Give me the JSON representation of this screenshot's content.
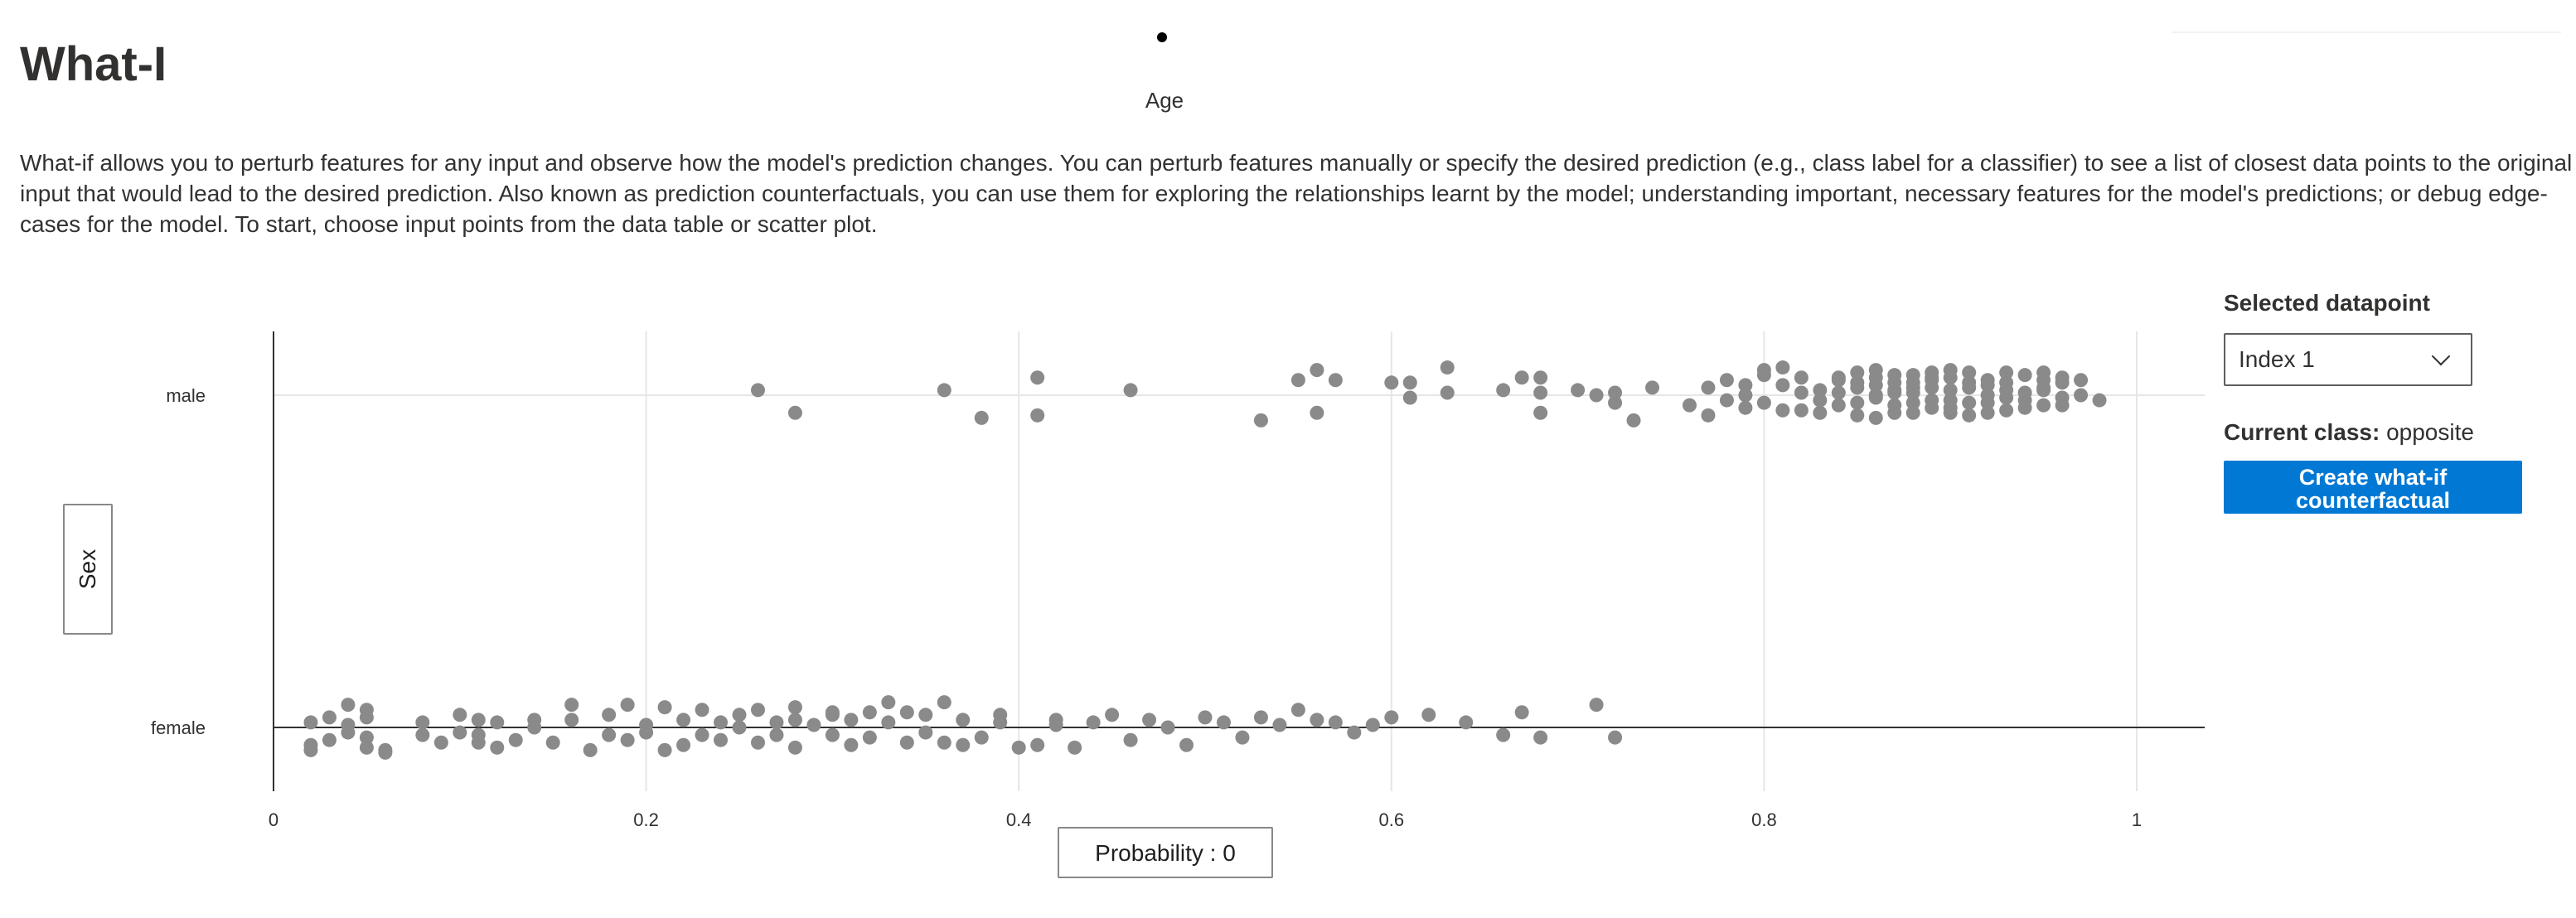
{
  "header": {
    "top_axis_label": "Age",
    "title": "What-I",
    "description": "What-if allows you to perturb features for any input and observe how the model's prediction changes. You can perturb features manually or specify the desired prediction (e.g., class label for a classifier) to see a list of closest data points to the original input that would lead to the desired prediction. Also known as prediction counterfactuals, you can use them for exploring the relationships learnt by the model; understanding important, necessary features for the model's predictions; or debug edge-cases for the model. To start, choose input points from the data table or scatter plot."
  },
  "axis_controls": {
    "y_button_label": "Sex",
    "x_button_label": "Probability : 0"
  },
  "side_panel": {
    "selected_label": "Selected datapoint",
    "selected_value": "Index 1",
    "current_class_label": "Current class:",
    "current_class_value": "opposite",
    "cf_button_label": "Create what-if counterfactual"
  },
  "colors": {
    "point": "#8a8a8a",
    "accent": "#0078d4"
  },
  "chart_data": {
    "type": "scatter",
    "x_ticks": [
      "0",
      "0.2",
      "0.4",
      "0.6",
      "0.8",
      "1"
    ],
    "x_tick_values": [
      0,
      0.2,
      0.4,
      0.6,
      0.8,
      1
    ],
    "xlim": [
      0,
      1.04
    ],
    "categories": [
      "female",
      "male"
    ],
    "grid": true,
    "series": [
      {
        "category": "male",
        "points": [
          [
            0.26,
            0.02
          ],
          [
            0.28,
            -0.07
          ],
          [
            0.36,
            0.02
          ],
          [
            0.38,
            -0.09
          ],
          [
            0.41,
            0.07
          ],
          [
            0.41,
            -0.08
          ],
          [
            0.46,
            0.02
          ],
          [
            0.53,
            -0.1
          ],
          [
            0.55,
            0.06
          ],
          [
            0.56,
            0.1
          ],
          [
            0.57,
            0.06
          ],
          [
            0.56,
            -0.07
          ],
          [
            0.6,
            0.05
          ],
          [
            0.61,
            0.05
          ],
          [
            0.61,
            -0.01
          ],
          [
            0.63,
            0.11
          ],
          [
            0.63,
            0.01
          ],
          [
            0.66,
            0.02
          ],
          [
            0.67,
            0.07
          ],
          [
            0.68,
            0.07
          ],
          [
            0.68,
            0.01
          ],
          [
            0.68,
            -0.07
          ],
          [
            0.7,
            0.02
          ],
          [
            0.71,
            0.0
          ],
          [
            0.72,
            -0.03
          ],
          [
            0.72,
            0.01
          ],
          [
            0.73,
            -0.1
          ],
          [
            0.74,
            0.03
          ],
          [
            0.76,
            -0.04
          ],
          [
            0.77,
            -0.08
          ],
          [
            0.78,
            -0.02
          ],
          [
            0.79,
            0.0
          ],
          [
            0.79,
            0.04
          ],
          [
            0.8,
            0.08
          ],
          [
            0.8,
            0.1
          ],
          [
            0.81,
            0.04
          ],
          [
            0.81,
            0.11
          ],
          [
            0.82,
            -0.06
          ],
          [
            0.82,
            0.07
          ],
          [
            0.83,
            0.02
          ],
          [
            0.83,
            -0.02
          ],
          [
            0.84,
            0.06
          ],
          [
            0.84,
            0.07
          ],
          [
            0.85,
            0.03
          ],
          [
            0.85,
            -0.03
          ],
          [
            0.86,
            0.0
          ],
          [
            0.86,
            -0.09
          ],
          [
            0.87,
            0.02
          ],
          [
            0.87,
            -0.04
          ],
          [
            0.88,
            0.05
          ],
          [
            0.88,
            0.01
          ],
          [
            0.89,
            -0.02
          ],
          [
            0.89,
            0.06
          ],
          [
            0.9,
            0.1
          ],
          [
            0.9,
            -0.05
          ],
          [
            0.91,
            0.03
          ],
          [
            0.91,
            -0.03
          ],
          [
            0.92,
            0.0
          ],
          [
            0.92,
            0.06
          ],
          [
            0.93,
            -0.06
          ],
          [
            0.93,
            0.02
          ],
          [
            0.94,
            0.08
          ],
          [
            0.94,
            0.01
          ],
          [
            0.95,
            0.09
          ],
          [
            0.95,
            0.02
          ],
          [
            0.96,
            -0.04
          ],
          [
            0.96,
            0.05
          ],
          [
            0.97,
            0.0
          ],
          [
            0.98,
            -0.02
          ],
          [
            0.85,
            0.09
          ],
          [
            0.86,
            0.07
          ],
          [
            0.87,
            0.05
          ],
          [
            0.88,
            -0.07
          ],
          [
            0.89,
            0.09
          ],
          [
            0.9,
            0.02
          ],
          [
            0.91,
            -0.08
          ],
          [
            0.92,
            0.04
          ],
          [
            0.93,
            -0.01
          ],
          [
            0.94,
            -0.05
          ],
          [
            0.95,
            0.03
          ],
          [
            0.96,
            0.07
          ],
          [
            0.97,
            0.06
          ],
          [
            0.82,
            0.01
          ],
          [
            0.83,
            -0.07
          ],
          [
            0.84,
            -0.04
          ],
          [
            0.85,
            0.05
          ],
          [
            0.86,
            -0.01
          ],
          [
            0.87,
            0.08
          ],
          [
            0.88,
            0.03
          ],
          [
            0.89,
            -0.05
          ],
          [
            0.9,
            0.07
          ],
          [
            0.91,
            0.05
          ],
          [
            0.92,
            -0.03
          ],
          [
            0.93,
            0.05
          ],
          [
            0.94,
            -0.02
          ],
          [
            0.95,
            0.06
          ],
          [
            0.96,
            -0.01
          ],
          [
            0.8,
            -0.03
          ],
          [
            0.81,
            -0.06
          ],
          [
            0.84,
            0.01
          ],
          [
            0.86,
            0.04
          ],
          [
            0.87,
            -0.07
          ],
          [
            0.88,
            0.08
          ],
          [
            0.89,
            0.03
          ],
          [
            0.9,
            -0.02
          ],
          [
            0.91,
            0.09
          ],
          [
            0.92,
            -0.07
          ],
          [
            0.78,
            0.06
          ],
          [
            0.79,
            -0.05
          ],
          [
            0.77,
            0.03
          ],
          [
            0.85,
            -0.08
          ],
          [
            0.87,
            0.01
          ],
          [
            0.89,
            0.07
          ],
          [
            0.9,
            -0.07
          ],
          [
            0.86,
            0.1
          ],
          [
            0.88,
            -0.03
          ],
          [
            0.93,
            0.09
          ],
          [
            0.95,
            -0.04
          ]
        ]
      },
      {
        "category": "female",
        "points": [
          [
            0.02,
            0.02
          ],
          [
            0.02,
            -0.07
          ],
          [
            0.02,
            -0.09
          ],
          [
            0.03,
            -0.05
          ],
          [
            0.03,
            0.04
          ],
          [
            0.04,
            -0.02
          ],
          [
            0.04,
            0.09
          ],
          [
            0.05,
            -0.04
          ],
          [
            0.05,
            0.07
          ],
          [
            0.05,
            0.04
          ],
          [
            0.05,
            -0.08
          ],
          [
            0.06,
            -0.09
          ],
          [
            0.06,
            -0.1
          ],
          [
            0.04,
            0.01
          ],
          [
            0.08,
            0.02
          ],
          [
            0.08,
            -0.03
          ],
          [
            0.09,
            -0.06
          ],
          [
            0.1,
            0.05
          ],
          [
            0.1,
            -0.02
          ],
          [
            0.11,
            0.03
          ],
          [
            0.11,
            -0.06
          ],
          [
            0.11,
            -0.03
          ],
          [
            0.12,
            0.02
          ],
          [
            0.12,
            -0.08
          ],
          [
            0.13,
            -0.05
          ],
          [
            0.14,
            0.0
          ],
          [
            0.14,
            0.03
          ],
          [
            0.15,
            -0.06
          ],
          [
            0.16,
            0.03
          ],
          [
            0.19,
            0.09
          ],
          [
            0.21,
            0.08
          ],
          [
            0.21,
            -0.09
          ],
          [
            0.22,
            0.03
          ],
          [
            0.22,
            -0.07
          ],
          [
            0.23,
            -0.03
          ],
          [
            0.23,
            0.07
          ],
          [
            0.24,
            -0.05
          ],
          [
            0.25,
            0.0
          ],
          [
            0.25,
            0.05
          ],
          [
            0.26,
            -0.06
          ],
          [
            0.26,
            0.07
          ],
          [
            0.27,
            -0.03
          ],
          [
            0.28,
            -0.08
          ],
          [
            0.28,
            0.08
          ],
          [
            0.29,
            0.01
          ],
          [
            0.3,
            0.05
          ],
          [
            0.31,
            -0.07
          ],
          [
            0.31,
            0.03
          ],
          [
            0.32,
            -0.04
          ],
          [
            0.33,
            0.02
          ],
          [
            0.33,
            0.1
          ],
          [
            0.34,
            0.06
          ],
          [
            0.35,
            -0.02
          ],
          [
            0.35,
            0.05
          ],
          [
            0.36,
            -0.06
          ],
          [
            0.36,
            0.1
          ],
          [
            0.37,
            0.03
          ],
          [
            0.38,
            -0.04
          ],
          [
            0.39,
            0.05
          ],
          [
            0.4,
            -0.08
          ],
          [
            0.42,
            0.03
          ],
          [
            0.43,
            -0.08
          ],
          [
            0.44,
            0.02
          ],
          [
            0.46,
            -0.05
          ],
          [
            0.47,
            0.03
          ],
          [
            0.48,
            0.0
          ],
          [
            0.49,
            -0.07
          ],
          [
            0.5,
            0.04
          ],
          [
            0.51,
            0.02
          ],
          [
            0.52,
            -0.04
          ],
          [
            0.53,
            0.04
          ],
          [
            0.54,
            0.01
          ],
          [
            0.56,
            0.03
          ],
          [
            0.57,
            0.02
          ],
          [
            0.58,
            -0.02
          ],
          [
            0.59,
            0.01
          ],
          [
            0.6,
            0.04
          ],
          [
            0.62,
            0.05
          ],
          [
            0.64,
            0.02
          ],
          [
            0.66,
            -0.03
          ],
          [
            0.67,
            0.06
          ],
          [
            0.68,
            -0.04
          ],
          [
            0.71,
            0.09
          ],
          [
            0.72,
            -0.04
          ],
          [
            0.18,
            -0.03
          ],
          [
            0.2,
            0.01
          ],
          [
            0.24,
            0.02
          ],
          [
            0.27,
            0.02
          ],
          [
            0.3,
            -0.03
          ],
          [
            0.32,
            0.06
          ],
          [
            0.34,
            -0.06
          ],
          [
            0.37,
            -0.07
          ],
          [
            0.39,
            0.02
          ],
          [
            0.16,
            0.09
          ],
          [
            0.17,
            -0.09
          ],
          [
            0.18,
            0.05
          ],
          [
            0.19,
            -0.05
          ],
          [
            0.2,
            -0.02
          ],
          [
            0.41,
            -0.07
          ],
          [
            0.42,
            0.01
          ],
          [
            0.45,
            0.05
          ],
          [
            0.55,
            0.07
          ],
          [
            0.3,
            0.06
          ],
          [
            0.28,
            0.03
          ]
        ]
      }
    ]
  }
}
